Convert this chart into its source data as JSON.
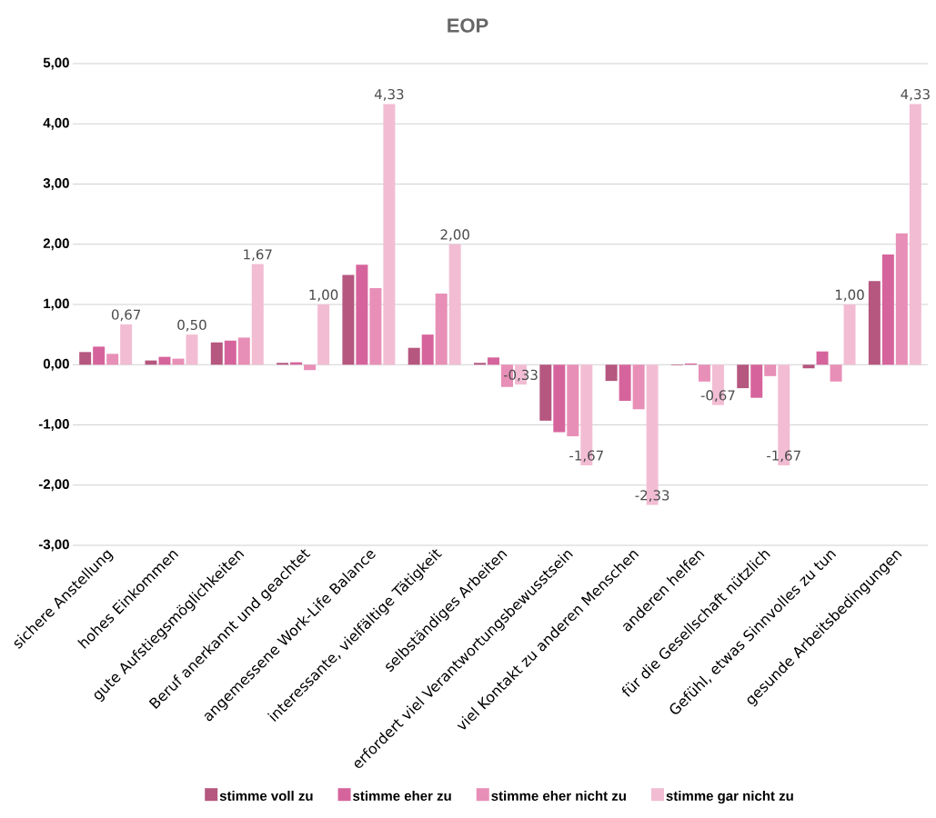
{
  "chart_data": {
    "type": "bar",
    "title": "EOP",
    "categories": [
      "sichere Anstellung",
      "hohes Einkommen",
      "gute Aufstiegsmöglichkeiten",
      "Beruf anerkannt und geachtet",
      "angemessene Work-Life Balance",
      "interessante, vielfältige Tätigkeit",
      "selbständiges Arbeiten",
      "erfordert viel Verantwortungsbewusstsein",
      "viel Kontakt zu anderen Menschen",
      "anderen helfen",
      "für die Gesellschaft nützlich",
      "Gefühl, etwas Sinnvolles zu tun",
      "gesunde Arbeitsbedingungen"
    ],
    "series": [
      {
        "name": "stimme voll zu",
        "color": "#b5577f",
        "values": [
          0.21,
          0.07,
          0.37,
          0.03,
          1.49,
          0.28,
          0.03,
          -0.93,
          -0.27,
          -0.01,
          -0.39,
          -0.06,
          1.39
        ]
      },
      {
        "name": "stimme eher zu",
        "color": "#d6649c",
        "values": [
          0.3,
          0.13,
          0.4,
          0.04,
          1.66,
          0.5,
          0.12,
          -1.12,
          -0.6,
          0.02,
          -0.55,
          0.22,
          1.83
        ]
      },
      {
        "name": "stimme eher nicht zu",
        "color": "#e88fb7",
        "values": [
          0.18,
          0.1,
          0.45,
          -0.09,
          1.27,
          1.18,
          -0.37,
          -1.19,
          -0.74,
          -0.28,
          -0.19,
          -0.28,
          2.18
        ]
      },
      {
        "name": "stimme gar nicht zu",
        "color": "#f2bdd3",
        "values": [
          0.67,
          0.5,
          1.67,
          1.0,
          4.33,
          2.0,
          -0.33,
          -1.67,
          -2.33,
          -0.67,
          -1.67,
          1.0,
          4.33
        ],
        "value_labels": [
          "0,67",
          "0,50",
          "1,67",
          "1,00",
          "4,33",
          "2,00",
          "-0,33",
          "-1,67",
          "-2,33",
          "-0,67",
          "-1,67",
          "1,00",
          "4,33"
        ]
      }
    ],
    "ylim": [
      -3,
      5
    ],
    "yticks": [
      {
        "value": -3,
        "label": "-3,00"
      },
      {
        "value": -2,
        "label": "-2,00"
      },
      {
        "value": -1,
        "label": "-1,00"
      },
      {
        "value": 0,
        "label": "0,00"
      },
      {
        "value": 1,
        "label": "1,00"
      },
      {
        "value": 2,
        "label": "2,00"
      },
      {
        "value": 3,
        "label": "3,00"
      },
      {
        "value": 4,
        "label": "4,00"
      },
      {
        "value": 5,
        "label": "5,00"
      }
    ],
    "grid": true,
    "legend": "bottom"
  }
}
